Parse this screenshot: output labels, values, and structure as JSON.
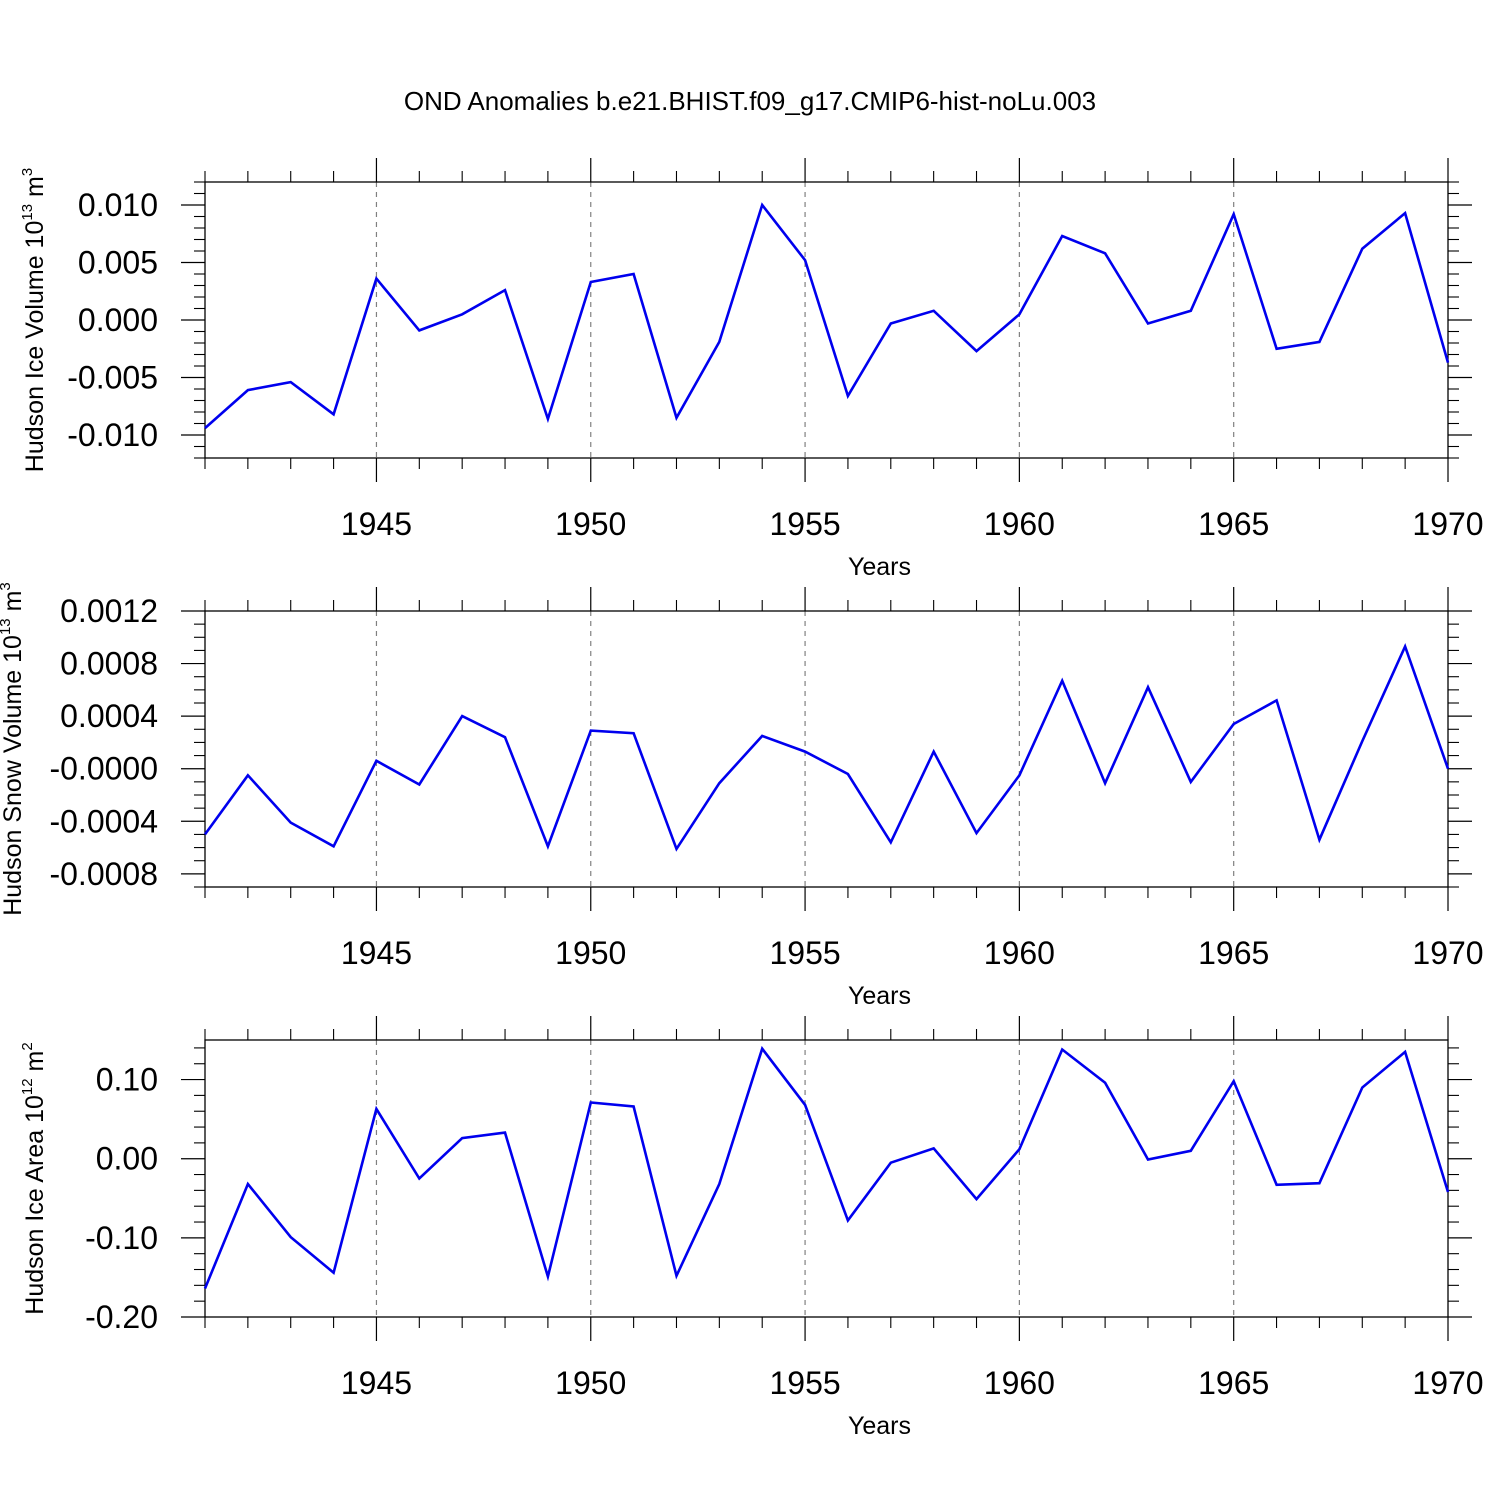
{
  "colors": {
    "line": "#0000ee",
    "axis": "#000000",
    "grid": "#808080",
    "background": "#ffffff"
  },
  "chart_data": {
    "title": "OND Anomalies b.e21.BHIST.f09_g17.CMIP6-hist-noLu.003",
    "panels": [
      {
        "type": "line",
        "title": "",
        "xlabel": "Years",
        "ylabel": {
          "text": "Hudson Ice Volume 10",
          "sup": "13",
          "unit": " m",
          "unit_sup": "3"
        },
        "xlim": [
          1941,
          1970
        ],
        "ylim": [
          -0.012,
          0.012
        ],
        "xticks": [
          1945,
          1950,
          1955,
          1960,
          1965,
          1970
        ],
        "xtick_labels": [
          "1945",
          "1950",
          "1955",
          "1960",
          "1965",
          "1970"
        ],
        "yticks": [
          -0.01,
          -0.005,
          0.0,
          0.005,
          0.01
        ],
        "ytick_labels": [
          "-0.010",
          "-0.005",
          "0.000",
          "0.005",
          "0.010"
        ],
        "yminor_step": 0.001,
        "grid": "vertical-dashed",
        "series": [
          {
            "name": "Hudson Ice Volume",
            "x": [
              1941,
              1942,
              1943,
              1944,
              1945,
              1946,
              1947,
              1948,
              1949,
              1950,
              1951,
              1952,
              1953,
              1954,
              1955,
              1956,
              1957,
              1958,
              1959,
              1960,
              1961,
              1962,
              1963,
              1964,
              1965,
              1966,
              1967,
              1968,
              1969,
              1970
            ],
            "values": [
              -0.0094,
              -0.0061,
              -0.0054,
              -0.0082,
              0.0036,
              -0.0009,
              0.0005,
              0.0026,
              -0.0086,
              0.0033,
              0.004,
              -0.0085,
              -0.0019,
              0.01,
              0.0052,
              -0.0066,
              -0.0003,
              0.0008,
              -0.0027,
              0.0005,
              0.0073,
              0.0058,
              -0.0003,
              0.0008,
              0.0092,
              -0.0025,
              -0.0019,
              0.0062,
              0.0093,
              -0.0037
            ]
          }
        ]
      },
      {
        "type": "line",
        "title": "",
        "xlabel": "Years",
        "ylabel": {
          "text": "Hudson Snow Volume 10",
          "sup": "13",
          "unit": " m",
          "unit_sup": "3"
        },
        "xlim": [
          1941,
          1970
        ],
        "ylim": [
          -0.0009,
          0.0012
        ],
        "xticks": [
          1945,
          1950,
          1955,
          1960,
          1965,
          1970
        ],
        "xtick_labels": [
          "1945",
          "1950",
          "1955",
          "1960",
          "1965",
          "1970"
        ],
        "yticks": [
          -0.0008,
          -0.0004,
          0.0,
          0.0004,
          0.0008,
          0.0012
        ],
        "ytick_labels": [
          "-0.0008",
          "-0.0004",
          "-0.0000",
          "0.0004",
          "0.0008",
          "0.0012"
        ],
        "yminor_step": 0.0001,
        "grid": "vertical-dashed",
        "series": [
          {
            "name": "Hudson Snow Volume",
            "x": [
              1941,
              1942,
              1943,
              1944,
              1945,
              1946,
              1947,
              1948,
              1949,
              1950,
              1951,
              1952,
              1953,
              1954,
              1955,
              1956,
              1957,
              1958,
              1959,
              1960,
              1961,
              1962,
              1963,
              1964,
              1965,
              1966,
              1967,
              1968,
              1969,
              1970
            ],
            "values": [
              -0.0005,
              -5e-05,
              -0.00041,
              -0.00059,
              6e-05,
              -0.00012,
              0.0004,
              0.00024,
              -0.00059,
              0.00029,
              0.00027,
              -0.00061,
              -0.00011,
              0.00025,
              0.00013,
              -4e-05,
              -0.00056,
              0.00013,
              -0.00049,
              -5e-05,
              0.00067,
              -0.00011,
              0.00062,
              -0.0001,
              0.00034,
              0.00052,
              -0.00054,
              0.00021,
              0.00093,
              0.0
            ]
          }
        ]
      },
      {
        "type": "line",
        "title": "",
        "xlabel": "Years",
        "ylabel": {
          "text": "Hudson Ice Area 10",
          "sup": "12",
          "unit": " m",
          "unit_sup": "2"
        },
        "xlim": [
          1941,
          1970
        ],
        "ylim": [
          -0.2,
          0.15
        ],
        "xticks": [
          1945,
          1950,
          1955,
          1960,
          1965,
          1970
        ],
        "xtick_labels": [
          "1945",
          "1950",
          "1955",
          "1960",
          "1965",
          "1970"
        ],
        "yticks": [
          -0.2,
          -0.1,
          0.0,
          0.1
        ],
        "ytick_labels": [
          "-0.20",
          "-0.10",
          "0.00",
          "0.10"
        ],
        "yminor_step": 0.02,
        "grid": "vertical-dashed",
        "series": [
          {
            "name": "Hudson Ice Area",
            "x": [
              1941,
              1942,
              1943,
              1944,
              1945,
              1946,
              1947,
              1948,
              1949,
              1950,
              1951,
              1952,
              1953,
              1954,
              1955,
              1956,
              1957,
              1958,
              1959,
              1960,
              1961,
              1962,
              1963,
              1964,
              1965,
              1966,
              1967,
              1968,
              1969,
              1970
            ],
            "values": [
              -0.164,
              -0.032,
              -0.099,
              -0.144,
              0.063,
              -0.025,
              0.026,
              0.033,
              -0.149,
              0.071,
              0.066,
              -0.148,
              -0.032,
              0.139,
              0.068,
              -0.078,
              -0.005,
              0.013,
              -0.051,
              0.012,
              0.138,
              0.096,
              -0.001,
              0.01,
              0.098,
              -0.033,
              -0.031,
              0.09,
              0.135,
              -0.042
            ]
          }
        ]
      }
    ]
  }
}
